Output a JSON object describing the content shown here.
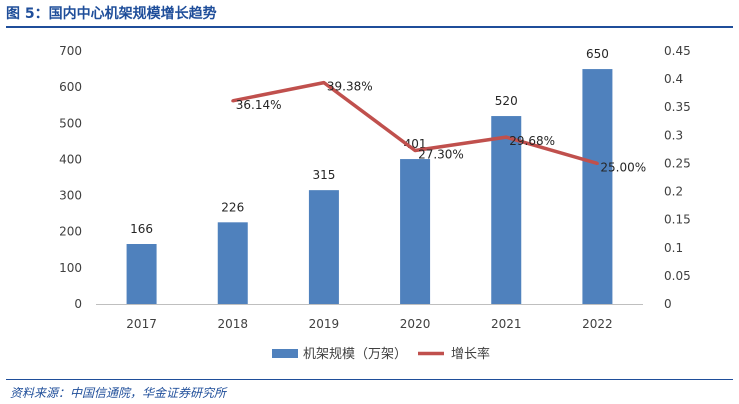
{
  "figure": {
    "title": "图 5：国内中心机架规模增长趋势",
    "source": "资料来源：中国信通院，华金证券研究所"
  },
  "colors": {
    "bar": "#4f81bd",
    "line": "#c0504d",
    "title": "#1f4e9a"
  },
  "chart_data": {
    "type": "bar+line",
    "title": "",
    "categories": [
      "2017",
      "2018",
      "2019",
      "2020",
      "2021",
      "2022"
    ],
    "series": [
      {
        "name": "机架规模（万架）",
        "type": "bar",
        "axis": "left",
        "values": [
          166,
          226,
          315,
          401,
          520,
          650
        ],
        "labels": [
          "166",
          "226",
          "315",
          "401",
          "520",
          "650"
        ]
      },
      {
        "name": "增长率",
        "type": "line",
        "axis": "right",
        "values": [
          null,
          0.3614,
          0.3938,
          0.273,
          0.2968,
          0.25
        ],
        "labels": [
          null,
          "36.14%",
          "39.38%",
          "27.30%",
          "29.68%",
          "25.00%"
        ]
      }
    ],
    "y_left": {
      "lim": [
        0,
        700
      ],
      "ticks": [
        "0",
        "100",
        "200",
        "300",
        "400",
        "500",
        "600",
        "700"
      ]
    },
    "y_right": {
      "lim": [
        0,
        0.45
      ],
      "ticks": [
        "0",
        "0.05",
        "0.1",
        "0.15",
        "0.2",
        "0.25",
        "0.3",
        "0.35",
        "0.4",
        "0.45"
      ]
    },
    "legend": {
      "position": "bottom"
    },
    "grid": false
  }
}
